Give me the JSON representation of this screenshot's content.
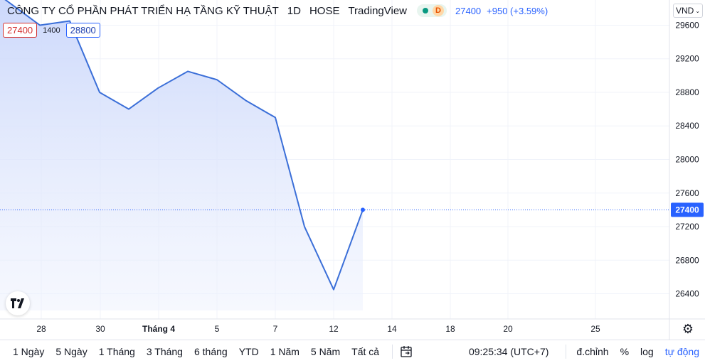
{
  "legend": {
    "symbol": "CÔNG TY CỔ PHẦN PHÁT TRIỂN HẠ TẦNG KỸ THUẬT",
    "interval": "1D",
    "exchange": "HOSE",
    "provider": "TradingView",
    "status_badge": "D",
    "last_price": "27400",
    "change": "+950 (+3.59%)"
  },
  "ohlc": {
    "low_label": "27400",
    "mid_label": "1400",
    "high_label": "28800"
  },
  "currency": {
    "label": "VND",
    "chevron": "⌄"
  },
  "price_tag": "27400",
  "logo_text": "17",
  "gear_icon": "⚙",
  "bottom_bar": {
    "ranges": [
      "1 Ngày",
      "5 Ngày",
      "1 Tháng",
      "3 Tháng",
      "6 tháng",
      "YTD",
      "1 Năm",
      "5 Năm",
      "Tất cả"
    ],
    "time": "09:25:34 (UTC+7)",
    "adjust_label": "đ.chỉnh",
    "percent_label": "%",
    "log_label": "log",
    "auto_label": "tự động"
  },
  "colors": {
    "line": "#3b6fd8",
    "area_top": "#c9d6fb",
    "last_price_tag": "#2962ff",
    "down": "#d32f2f"
  },
  "chart_data": {
    "type": "area",
    "x_tick_labels": [
      "28",
      "30",
      "Tháng 4",
      "5",
      "7",
      "12",
      "14",
      "18",
      "20",
      "25"
    ],
    "y_tick_labels": [
      "26400",
      "26800",
      "27200",
      "27600",
      "28000",
      "28400",
      "28800",
      "29200",
      "29600"
    ],
    "ylim": [
      26100,
      29900
    ],
    "series": [
      {
        "values": [
          29950,
          29600,
          29650,
          28800,
          28600,
          28850,
          29050,
          28950,
          28700,
          28500,
          27200,
          26450,
          27400
        ]
      }
    ],
    "last_value": 27400
  }
}
